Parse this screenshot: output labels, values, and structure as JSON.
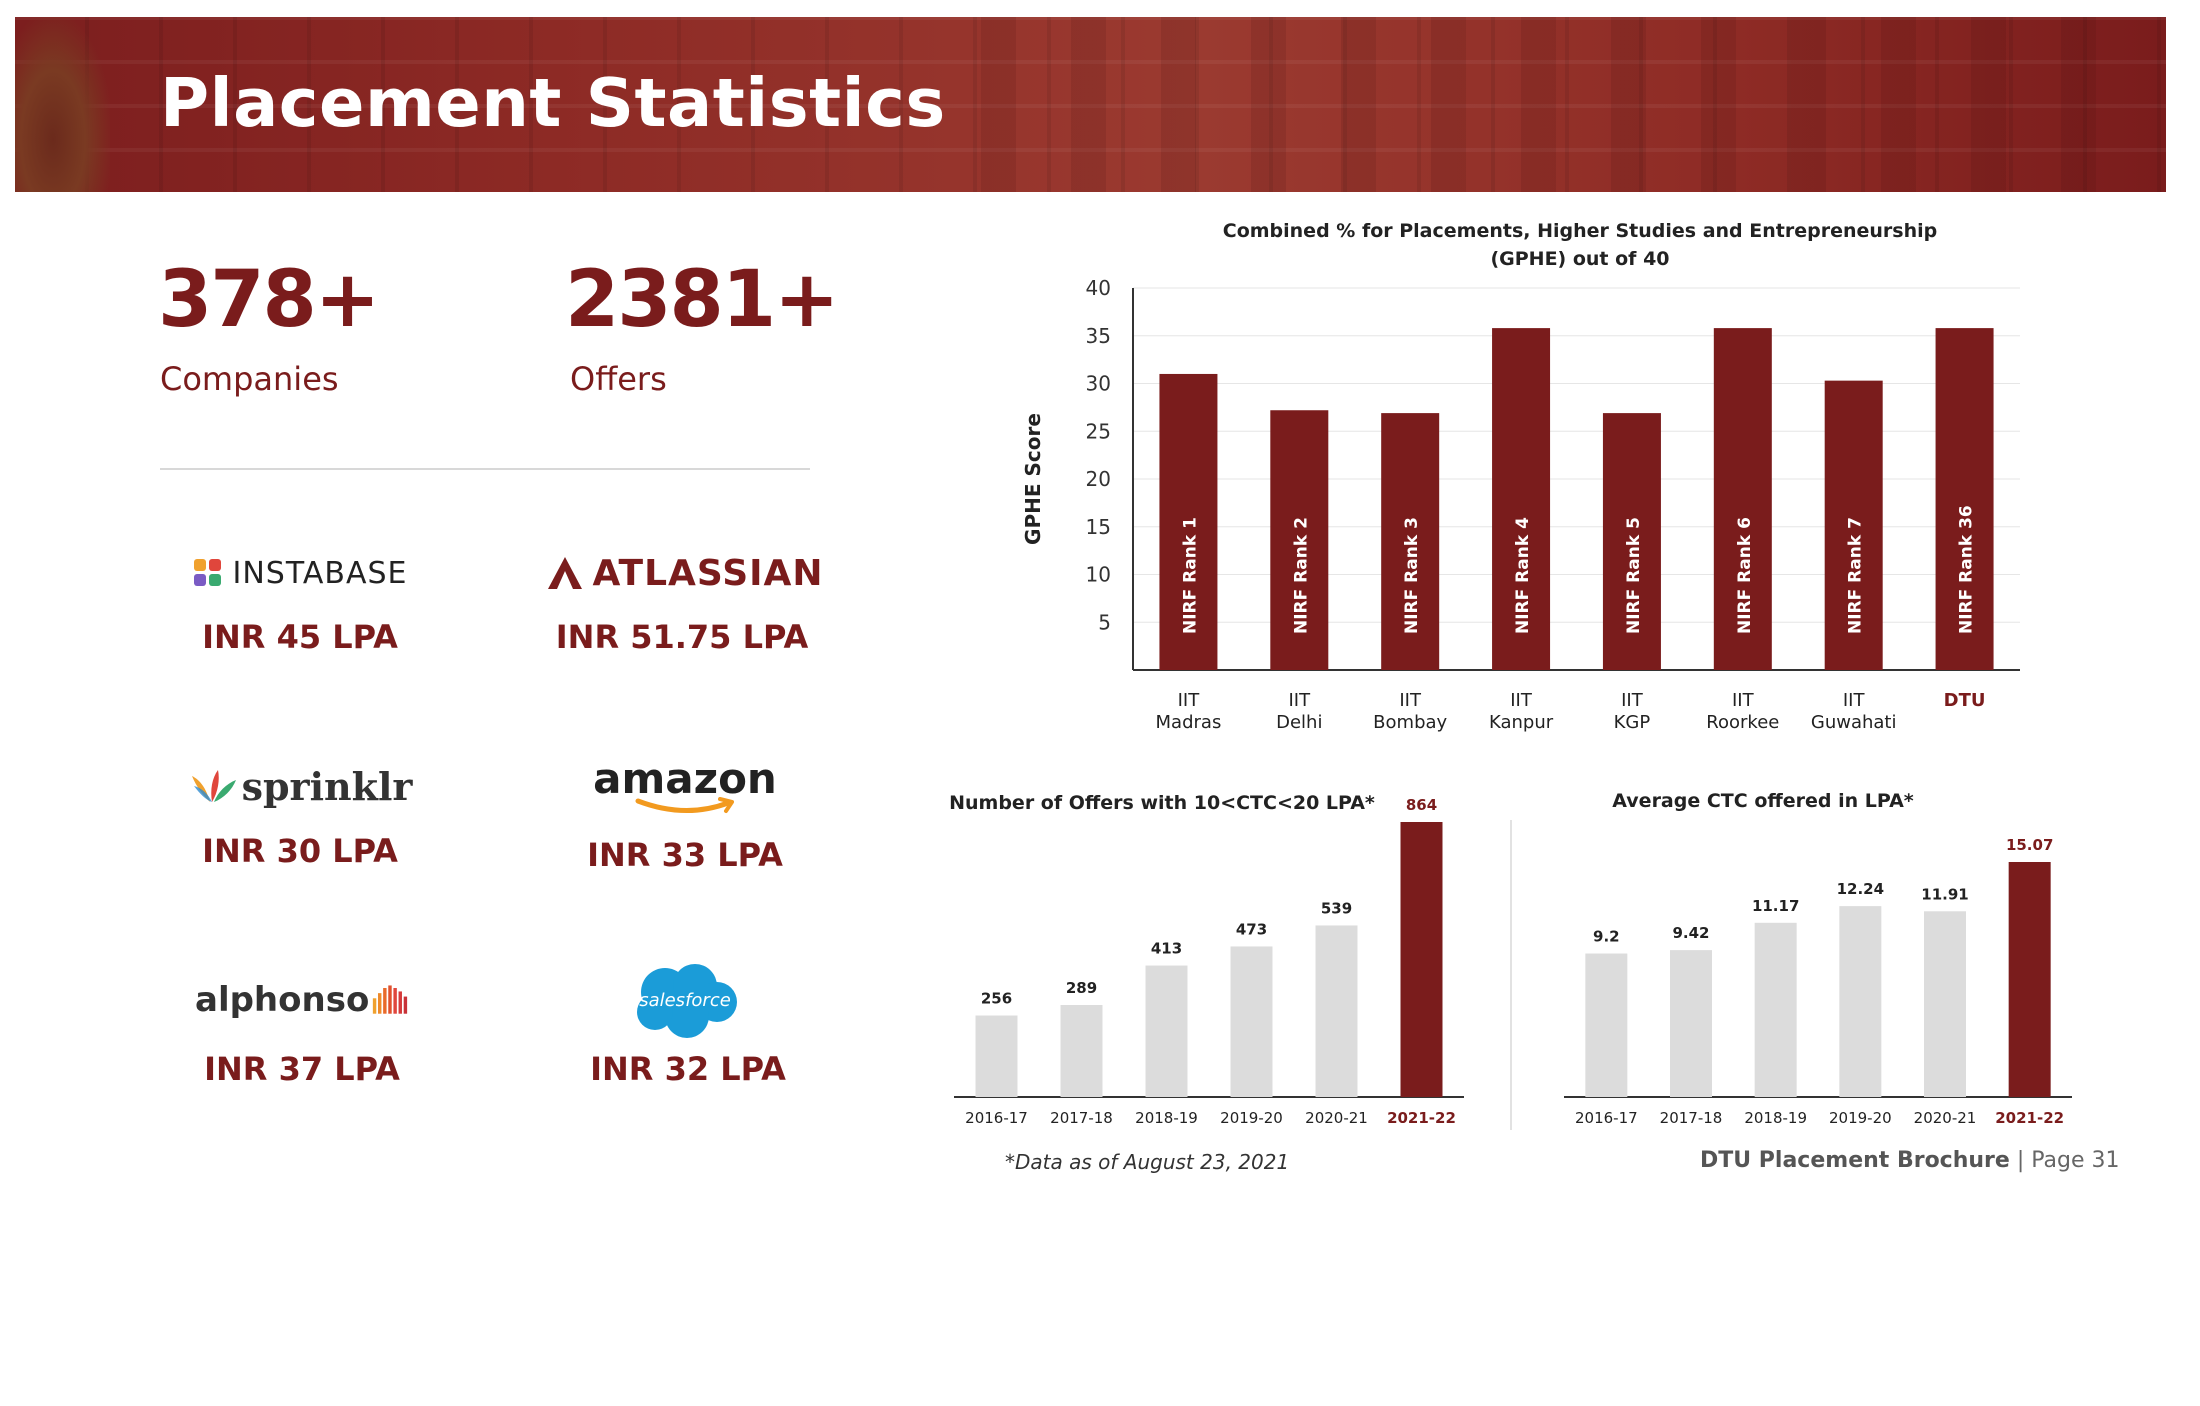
{
  "header": {
    "title": "Placement Statistics"
  },
  "stats": [
    {
      "value": "378+",
      "label": "Companies"
    },
    {
      "value": "2381+",
      "label": "Offers"
    }
  ],
  "companies": [
    {
      "name": "INSTABASE",
      "package": "INR 45 LPA"
    },
    {
      "name": "ATLASSIAN",
      "package": "INR 51.75 LPA"
    },
    {
      "name": "sprinklr",
      "package": "INR 30 LPA"
    },
    {
      "name": "amazon",
      "package": "INR 33 LPA"
    },
    {
      "name": "alphonso",
      "package": "INR 37 LPA"
    },
    {
      "name": "salesforce",
      "package": "INR 32 LPA"
    }
  ],
  "colors": {
    "maroon": "#7a1c1c",
    "grey_bar": "#dcdcdc",
    "text_dark": "#222222"
  },
  "chart_data": [
    {
      "type": "bar",
      "title": "Combined % for Placements, Higher Studies and Entrepreneurship (GPHE) out of 40",
      "title_lines": [
        "Combined % for Placements, Higher Studies and Entrepreneurship",
        "(GPHE) out of 40"
      ],
      "ylabel": "GPHE Score",
      "xlabel": "",
      "ylim": [
        0,
        40
      ],
      "yticks": [
        5,
        10,
        15,
        20,
        25,
        30,
        35,
        40
      ],
      "grid": true,
      "categories": [
        [
          "IIT",
          "Madras"
        ],
        [
          "IIT",
          "Delhi"
        ],
        [
          "IIT",
          "Bombay"
        ],
        [
          "IIT",
          "Kanpur"
        ],
        [
          "IIT",
          "KGP"
        ],
        [
          "IIT",
          "Roorkee"
        ],
        [
          "IIT",
          "Guwahati"
        ],
        [
          "DTU"
        ]
      ],
      "values": [
        31,
        27.2,
        26.9,
        35.8,
        26.9,
        35.8,
        30.3,
        35.8
      ],
      "bar_labels": [
        "NIRF Rank 1",
        "NIRF Rank 2",
        "NIRF Rank 3",
        "NIRF Rank 4",
        "NIRF Rank 5",
        "NIRF Rank 6",
        "NIRF Rank 7",
        "NIRF Rank 36"
      ],
      "highlight_index": 7
    },
    {
      "type": "bar",
      "title": "Number of Offers with 10<CTC<20 LPA*",
      "categories": [
        "2016-17",
        "2017-18",
        "2018-19",
        "2019-20",
        "2020-21",
        "2021-22"
      ],
      "values": [
        256,
        289,
        413,
        473,
        539,
        864
      ],
      "data_labels": [
        "256",
        "289",
        "413",
        "473",
        "539",
        "864"
      ],
      "ylim": [
        0,
        864
      ],
      "highlight_index": 5
    },
    {
      "type": "bar",
      "title": "Average CTC offered in LPA*",
      "categories": [
        "2016-17",
        "2017-18",
        "2018-19",
        "2019-20",
        "2020-21",
        "2021-22"
      ],
      "values": [
        9.2,
        9.42,
        11.17,
        12.24,
        11.91,
        15.07
      ],
      "data_labels": [
        "9.2",
        "9.42",
        "11.17",
        "12.24",
        "11.91",
        "15.07"
      ],
      "ylim": [
        0,
        15.07
      ],
      "highlight_index": 5
    }
  ],
  "footer": {
    "note": "*Data as of August 23, 2021",
    "brand": "DTU Placement Brochure",
    "separator": " | ",
    "page": "Page 31"
  }
}
